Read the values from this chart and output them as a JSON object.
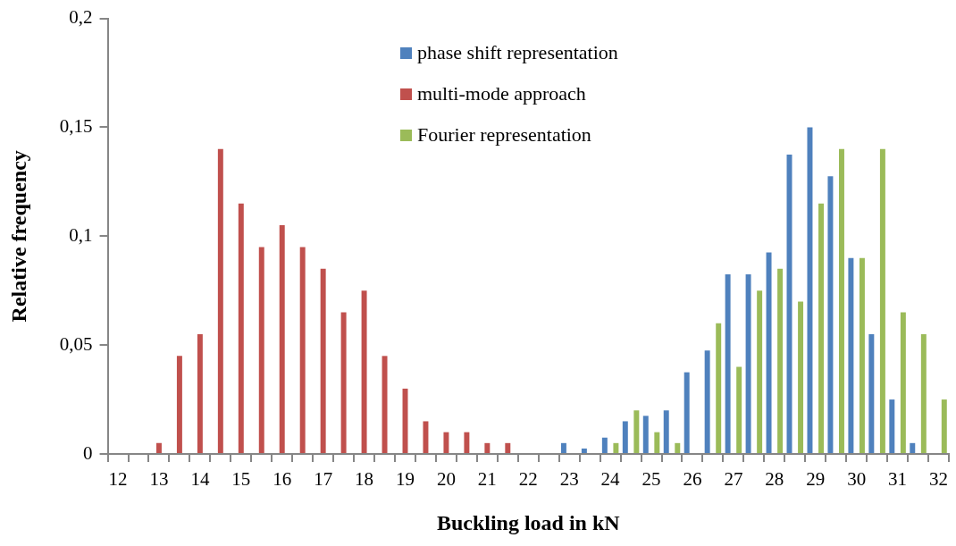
{
  "chart_data": {
    "type": "bar",
    "xlabel": "Buckling load in kN",
    "ylabel": "Relative frequency",
    "categories": [
      "12",
      null,
      "13",
      null,
      "14",
      null,
      "15",
      null,
      "16",
      null,
      "17",
      null,
      "18",
      null,
      "19",
      null,
      "20",
      null,
      "21",
      null,
      "22",
      null,
      "23",
      null,
      "24",
      null,
      "25",
      null,
      "26",
      null,
      "27",
      null,
      "28",
      null,
      "29",
      null,
      "30",
      null,
      "31",
      null,
      "32"
    ],
    "series": [
      {
        "name": "phase shift representation",
        "color": "#4f81bd",
        "values": [
          0,
          0,
          0,
          0,
          0,
          0,
          0,
          0,
          0,
          0,
          0,
          0,
          0,
          0,
          0,
          0,
          0,
          0,
          0,
          0,
          0,
          0,
          0.005,
          0.0025,
          0.0075,
          0.015,
          0.0175,
          0.02,
          0.0375,
          0.0475,
          0.0825,
          0.0825,
          0.0925,
          0.1375,
          0.15,
          0.1275,
          0.09,
          0.055,
          0.025,
          0.005,
          0
        ]
      },
      {
        "name": "multi-mode approach",
        "color": "#c0504d",
        "values": [
          0,
          0,
          0.005,
          0.045,
          0.055,
          0.14,
          0.115,
          0.095,
          0.105,
          0.095,
          0.085,
          0.065,
          0.075,
          0.045,
          0.03,
          0.015,
          0.01,
          0.01,
          0.005,
          0.005,
          0,
          0,
          0,
          0,
          0,
          0,
          0,
          0,
          0,
          0,
          0,
          0,
          0,
          0,
          0,
          0,
          0,
          0,
          0,
          0,
          0
        ]
      },
      {
        "name": "Fourier representation",
        "color": "#9bbb59",
        "values": [
          0,
          0,
          0,
          0,
          0,
          0,
          0,
          0,
          0,
          0,
          0,
          0,
          0,
          0,
          0,
          0,
          0,
          0,
          0,
          0,
          0,
          0,
          0,
          0,
          0.005,
          0.02,
          0.01,
          0.005,
          0,
          0.06,
          0.04,
          0.075,
          0.085,
          0.07,
          0.115,
          0.14,
          0.09,
          0.14,
          0.065,
          0.055,
          0.025
        ]
      }
    ],
    "ylim": [
      0,
      0.2
    ],
    "yticks": [
      0,
      {
        "value": 0.05,
        "label": "0,05"
      },
      {
        "value": 0.1,
        "label": "0,1"
      },
      {
        "value": 0.15,
        "label": "0,15"
      },
      {
        "value": 0.2,
        "label": "0,2"
      }
    ],
    "grid": false,
    "legend": "top"
  }
}
